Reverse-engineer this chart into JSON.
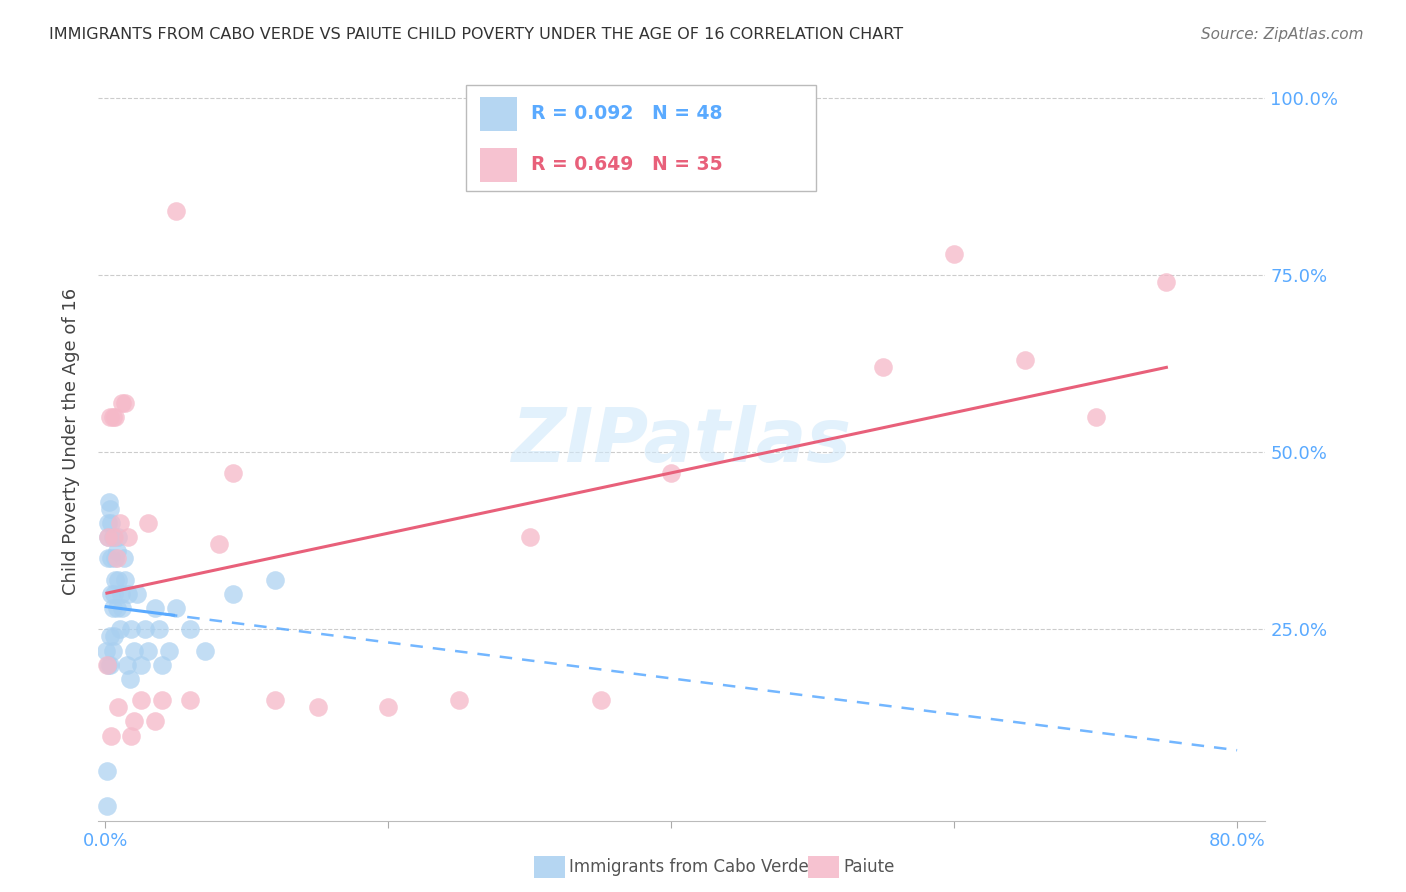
{
  "title": "IMMIGRANTS FROM CABO VERDE VS PAIUTE CHILD POVERTY UNDER THE AGE OF 16 CORRELATION CHART",
  "source": "Source: ZipAtlas.com",
  "ylabel": "Child Poverty Under the Age of 16",
  "blue_color": "#a8cff0",
  "pink_color": "#f5b8c8",
  "line_blue": "#5aaaff",
  "line_pink": "#e8607a",
  "watermark_color": "#d0e8fa",
  "cabo_verde_x": [
    0.0005,
    0.001,
    0.001,
    0.0015,
    0.002,
    0.002,
    0.002,
    0.0025,
    0.003,
    0.003,
    0.003,
    0.004,
    0.004,
    0.004,
    0.005,
    0.005,
    0.005,
    0.006,
    0.006,
    0.007,
    0.007,
    0.008,
    0.008,
    0.009,
    0.009,
    0.01,
    0.011,
    0.012,
    0.013,
    0.014,
    0.015,
    0.016,
    0.017,
    0.018,
    0.02,
    0.022,
    0.025,
    0.028,
    0.03,
    0.035,
    0.038,
    0.04,
    0.045,
    0.05,
    0.06,
    0.07,
    0.09,
    0.12
  ],
  "cabo_verde_y": [
    0.22,
    0.0,
    0.05,
    0.2,
    0.35,
    0.38,
    0.4,
    0.43,
    0.2,
    0.24,
    0.42,
    0.3,
    0.35,
    0.4,
    0.22,
    0.28,
    0.38,
    0.24,
    0.3,
    0.32,
    0.35,
    0.28,
    0.36,
    0.32,
    0.38,
    0.25,
    0.3,
    0.28,
    0.35,
    0.32,
    0.2,
    0.3,
    0.18,
    0.25,
    0.22,
    0.3,
    0.2,
    0.25,
    0.22,
    0.28,
    0.25,
    0.2,
    0.22,
    0.28,
    0.25,
    0.22,
    0.3,
    0.32
  ],
  "paiute_x": [
    0.001,
    0.002,
    0.003,
    0.004,
    0.005,
    0.006,
    0.007,
    0.008,
    0.009,
    0.01,
    0.012,
    0.014,
    0.016,
    0.018,
    0.02,
    0.025,
    0.03,
    0.035,
    0.04,
    0.05,
    0.06,
    0.08,
    0.09,
    0.12,
    0.15,
    0.2,
    0.25,
    0.3,
    0.35,
    0.4,
    0.55,
    0.6,
    0.65,
    0.7,
    0.75
  ],
  "paiute_y": [
    0.2,
    0.38,
    0.55,
    0.1,
    0.55,
    0.38,
    0.55,
    0.35,
    0.14,
    0.4,
    0.57,
    0.57,
    0.38,
    0.1,
    0.12,
    0.15,
    0.4,
    0.12,
    0.15,
    0.84,
    0.15,
    0.37,
    0.47,
    0.15,
    0.14,
    0.14,
    0.15,
    0.38,
    0.15,
    0.47,
    0.62,
    0.78,
    0.63,
    0.55,
    0.74
  ],
  "xlim": [
    -0.005,
    0.82
  ],
  "ylim": [
    -0.02,
    1.05
  ],
  "x_tick_positions": [
    0.0,
    0.2,
    0.4,
    0.6,
    0.8
  ],
  "x_tick_labels": [
    "0.0%",
    "",
    "",
    "",
    "80.0%"
  ],
  "y_tick_positions": [
    0.25,
    0.5,
    0.75,
    1.0
  ],
  "y_tick_labels": [
    "25.0%",
    "50.0%",
    "75.0%",
    "100.0%"
  ]
}
